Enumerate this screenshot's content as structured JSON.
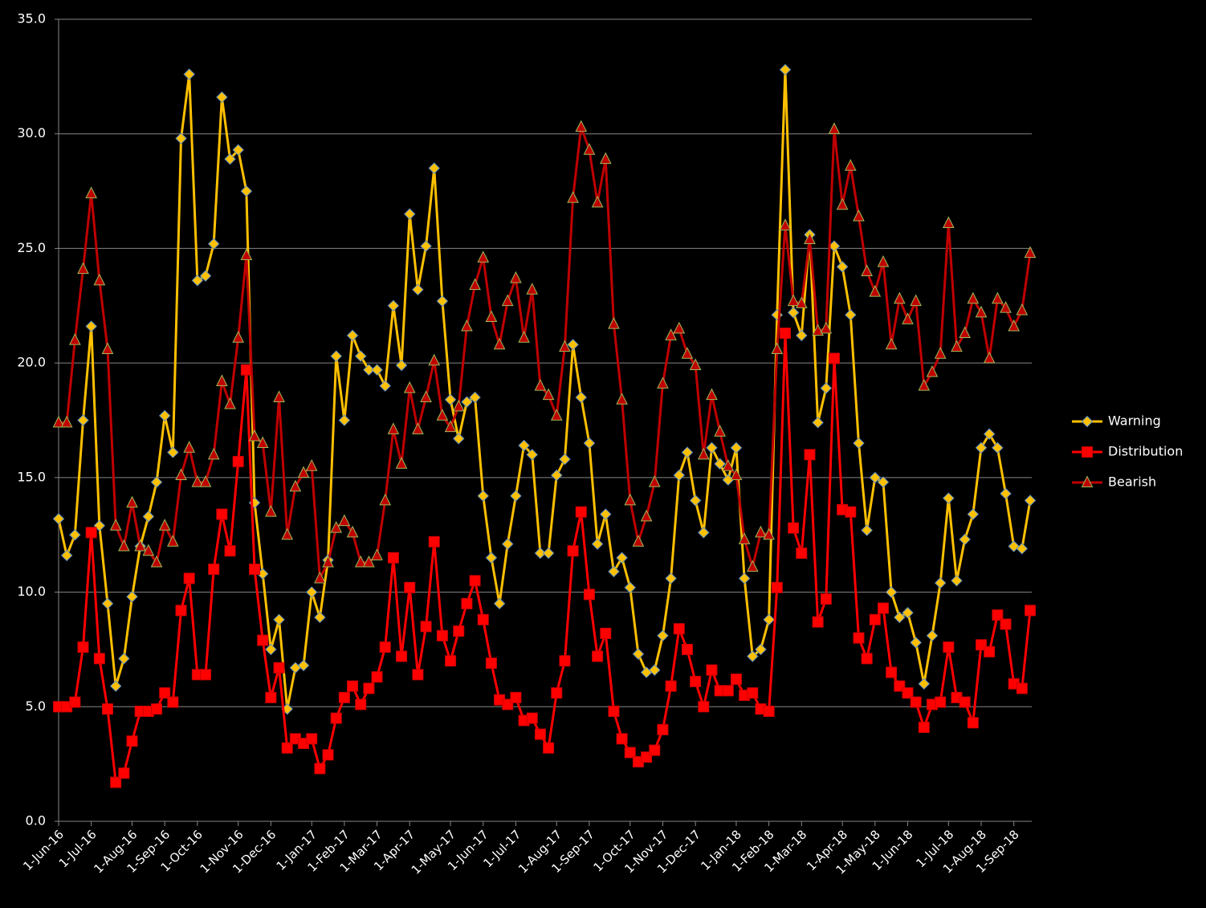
{
  "chart_data": {
    "type": "line",
    "categories": [
      "1-Jun-16",
      null,
      null,
      null,
      "1-Jul-16",
      null,
      null,
      null,
      null,
      "1-Aug-16",
      null,
      null,
      null,
      "1-Sep-16",
      null,
      null,
      null,
      "1-Oct-16",
      null,
      null,
      null,
      null,
      "1-Nov-16",
      null,
      null,
      null,
      "1-Dec-16",
      null,
      null,
      null,
      null,
      "1-Jan-17",
      null,
      null,
      null,
      "1-Feb-17",
      null,
      null,
      null,
      "1-Mar-17",
      null,
      null,
      null,
      "1-Apr-17",
      null,
      null,
      null,
      null,
      "1-May-17",
      null,
      null,
      null,
      "1-Jun-17",
      null,
      null,
      null,
      "1-Jul-17",
      null,
      null,
      null,
      null,
      "1-Aug-17",
      null,
      null,
      null,
      "1-Sep-17",
      null,
      null,
      null,
      null,
      "1-Oct-17",
      null,
      null,
      null,
      "1-Nov-17",
      null,
      null,
      null,
      "1-Dec-17",
      null,
      null,
      null,
      null,
      "1-Jan-18",
      null,
      null,
      null,
      "1-Feb-18",
      null,
      null,
      null,
      "1-Mar-18",
      null,
      null,
      null,
      null,
      "1-Apr-18",
      null,
      null,
      null,
      "1-May-18",
      null,
      null,
      null,
      "1-Jun-18",
      null,
      null,
      null,
      null,
      "1-Jul-18",
      null,
      null,
      null,
      "1-Aug-18",
      null,
      null,
      null,
      "1-Sep-18",
      null,
      null
    ],
    "series": [
      {
        "name": "Warning",
        "color": "#FFC000",
        "marker": "diamond",
        "marker_color": "#FFC000",
        "values": [
          13.2,
          11.6,
          12.5,
          17.5,
          21.6,
          12.9,
          9.5,
          5.9,
          7.1,
          9.8,
          12.0,
          13.3,
          14.8,
          17.7,
          16.1,
          29.8,
          32.6,
          23.6,
          23.8,
          25.2,
          31.6,
          28.9,
          29.3,
          27.5,
          13.9,
          10.8,
          7.5,
          8.8,
          4.9,
          6.7,
          6.8,
          10.0,
          8.9,
          11.4,
          20.3,
          17.5,
          21.2,
          20.3,
          19.7,
          19.7,
          19.0,
          22.5,
          19.9,
          26.5,
          23.2,
          25.1,
          28.5,
          22.7,
          18.4,
          16.7,
          18.3,
          18.5,
          14.2,
          11.5,
          9.5,
          12.1,
          14.2,
          16.4,
          16.0,
          11.7,
          11.7,
          15.1,
          15.8,
          20.8,
          18.5,
          16.5,
          12.1,
          13.4,
          10.9,
          11.5,
          10.2,
          7.3,
          6.5,
          6.6,
          8.1,
          10.6,
          15.1,
          16.1,
          14.0,
          12.6,
          16.3,
          15.6,
          14.9,
          16.3,
          10.6,
          7.2,
          7.5,
          8.8,
          22.1,
          32.8,
          22.2,
          21.2,
          25.6,
          17.4,
          18.9,
          25.1,
          24.2,
          22.1,
          16.5,
          12.7,
          15.0,
          14.8,
          10.0,
          8.9,
          9.1,
          7.8,
          6.0,
          8.1,
          10.4,
          14.1,
          10.5,
          12.3,
          13.4,
          16.3,
          16.9,
          16.3,
          14.3,
          12.0,
          11.9,
          14.0
        ]
      },
      {
        "name": "Distribution",
        "color": "#FF0000",
        "marker": "square",
        "marker_color": "#FF0000",
        "values": [
          5.0,
          5.0,
          5.2,
          7.6,
          12.6,
          7.1,
          4.9,
          1.7,
          2.1,
          3.5,
          4.8,
          4.8,
          4.9,
          5.6,
          5.2,
          9.2,
          10.6,
          6.4,
          6.4,
          11.0,
          13.4,
          11.8,
          15.7,
          19.7,
          11.0,
          7.9,
          5.4,
          6.7,
          3.2,
          3.6,
          3.4,
          3.6,
          2.3,
          2.9,
          4.5,
          5.4,
          5.9,
          5.1,
          5.8,
          6.3,
          7.6,
          11.5,
          7.2,
          10.2,
          6.4,
          8.5,
          12.2,
          8.1,
          7.0,
          8.3,
          9.5,
          10.5,
          8.8,
          6.9,
          5.3,
          5.1,
          5.4,
          4.4,
          4.5,
          3.8,
          3.2,
          5.6,
          7.0,
          11.8,
          13.5,
          9.9,
          7.2,
          8.2,
          4.8,
          3.6,
          3.0,
          2.6,
          2.8,
          3.1,
          4.0,
          5.9,
          8.4,
          7.5,
          6.1,
          5.0,
          6.6,
          5.7,
          5.7,
          6.2,
          5.5,
          5.6,
          4.9,
          4.8,
          10.2,
          21.3,
          12.8,
          11.7,
          16.0,
          8.7,
          9.7,
          20.2,
          13.6,
          13.5,
          8.0,
          7.1,
          8.8,
          9.3,
          6.5,
          5.9,
          5.6,
          5.2,
          4.1,
          5.1,
          5.2,
          7.6,
          5.4,
          5.2,
          4.3,
          7.7,
          7.4,
          9.0,
          8.6,
          6.0,
          5.8,
          9.2
        ]
      },
      {
        "name": "Bearish",
        "color": "#C00000",
        "marker": "triangle",
        "marker_color": "#C00000",
        "values": [
          17.4,
          17.4,
          21.0,
          24.1,
          27.4,
          23.6,
          20.6,
          12.9,
          12.0,
          13.9,
          12.0,
          11.8,
          11.3,
          12.9,
          12.2,
          15.1,
          16.3,
          14.8,
          14.8,
          16.0,
          19.2,
          18.2,
          21.1,
          24.7,
          16.8,
          16.5,
          13.5,
          18.5,
          12.5,
          14.6,
          15.2,
          15.5,
          10.6,
          11.3,
          12.8,
          13.1,
          12.6,
          11.3,
          11.3,
          11.6,
          14.0,
          17.1,
          15.6,
          18.9,
          17.1,
          18.5,
          20.1,
          17.7,
          17.2,
          18.1,
          21.6,
          23.4,
          24.6,
          22.0,
          20.8,
          22.7,
          23.7,
          21.1,
          23.2,
          19.0,
          18.6,
          17.7,
          20.7,
          27.2,
          30.3,
          29.3,
          27.0,
          28.9,
          21.7,
          18.4,
          14.0,
          12.2,
          13.3,
          14.8,
          19.1,
          21.2,
          21.5,
          20.4,
          19.9,
          16.0,
          18.6,
          17.0,
          15.5,
          15.1,
          12.3,
          11.1,
          12.6,
          12.5,
          20.6,
          26.0,
          22.7,
          22.6,
          25.4,
          21.4,
          21.5,
          30.2,
          26.9,
          28.6,
          26.4,
          24.0,
          23.1,
          24.4,
          20.8,
          22.8,
          21.9,
          22.7,
          19.0,
          19.6,
          20.4,
          26.1,
          20.7,
          21.3,
          22.8,
          22.2,
          20.2,
          22.8,
          22.4,
          21.6,
          22.3,
          24.8
        ]
      }
    ],
    "ylim": [
      0,
      35
    ],
    "yticks": [
      {
        "value": 0,
        "label": "0.0"
      },
      {
        "value": 5,
        "label": "5.0"
      },
      {
        "value": 10,
        "label": "10.0"
      },
      {
        "value": 15,
        "label": "15.0"
      },
      {
        "value": 20,
        "label": "20.0"
      },
      {
        "value": 25,
        "label": "25.0"
      },
      {
        "value": 30,
        "label": "30.0"
      },
      {
        "value": 35,
        "label": "35.0"
      }
    ],
    "grid": true,
    "legend": "right",
    "background": "#000000"
  }
}
